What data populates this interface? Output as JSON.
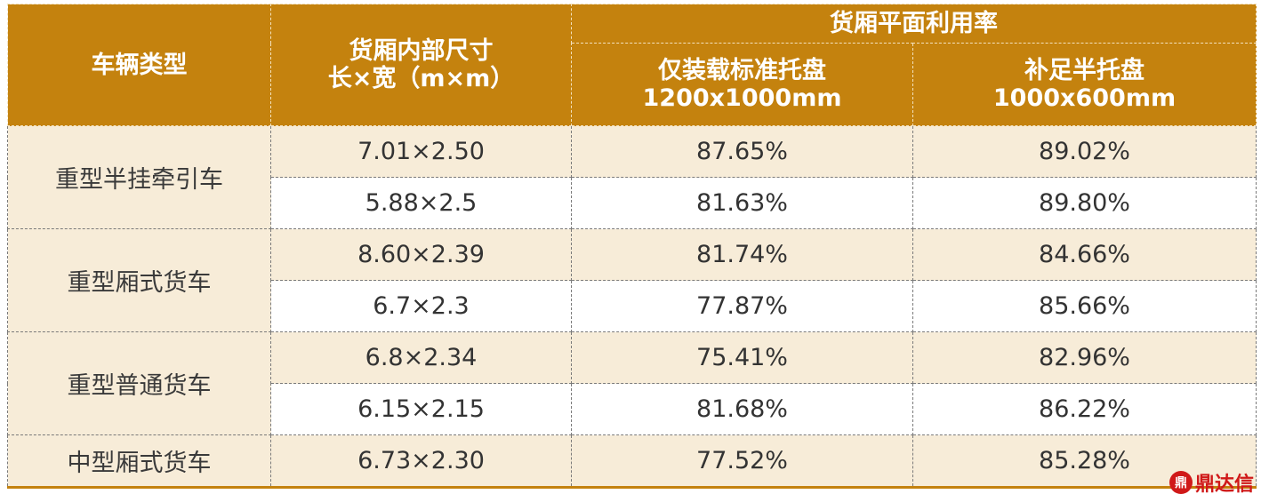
{
  "header": {
    "vehicle_type": "车辆类型",
    "dimensions": [
      "货厢内部尺寸",
      "长×宽（m×m）"
    ],
    "utilization": "货厢平面利用率",
    "std_pallet": [
      "仅装载标准托盘",
      "1200x1000mm"
    ],
    "half_pallet": [
      "补足半托盘",
      "1000x600mm"
    ]
  },
  "groups": [
    {
      "type": "重型半挂牵引车",
      "rows": [
        {
          "size": "7.01×2.50",
          "std": "87.65%",
          "half": "89.02%"
        },
        {
          "size": "5.88×2.5",
          "std": "81.63%",
          "half": "89.80%"
        }
      ]
    },
    {
      "type": "重型厢式货车",
      "rows": [
        {
          "size": "8.60×2.39",
          "std": "81.74%",
          "half": "84.66%"
        },
        {
          "size": "6.7×2.3",
          "std": "77.87%",
          "half": "85.66%"
        }
      ]
    },
    {
      "type": "重型普通货车",
      "rows": [
        {
          "size": "6.8×2.34",
          "std": "75.41%",
          "half": "82.96%"
        },
        {
          "size": "6.15×2.15",
          "std": "81.68%",
          "half": "86.22%"
        }
      ]
    },
    {
      "type": "中型厢式货车",
      "rows": [
        {
          "size": "6.73×2.30",
          "std": "77.52%",
          "half": "85.28%"
        }
      ]
    }
  ],
  "watermark": {
    "icon": "dingdaxin-logo-icon",
    "text": "鼎达信"
  }
}
